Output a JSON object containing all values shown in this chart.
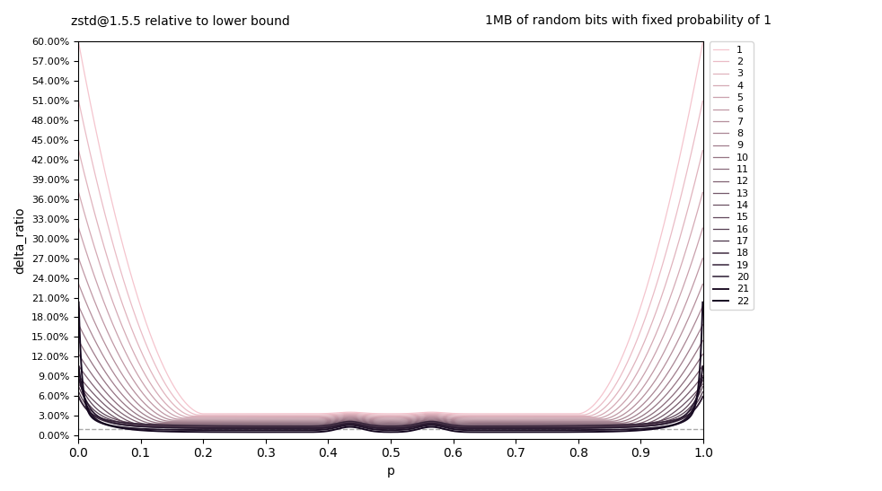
{
  "title_left": "zstd@1.5.5 relative to lower bound",
  "title_right": "1MB of random bits with fixed probability of 1",
  "xlabel": "p",
  "ylabel": "delta_ratio",
  "xlim": [
    0.0,
    1.0
  ],
  "ylim": [
    -0.005,
    0.6
  ],
  "yticks": [
    0.0,
    0.03,
    0.06,
    0.09,
    0.12,
    0.15,
    0.18,
    0.21,
    0.24,
    0.27,
    0.3,
    0.33,
    0.36,
    0.39,
    0.42,
    0.45,
    0.48,
    0.51,
    0.54,
    0.57,
    0.6
  ],
  "ytick_labels": [
    "0.00%",
    "3.00%",
    "6.00%",
    "9.00%",
    "12.00%",
    "15.00%",
    "18.00%",
    "21.00%",
    "24.00%",
    "27.00%",
    "30.00%",
    "33.00%",
    "36.00%",
    "39.00%",
    "42.00%",
    "45.00%",
    "48.00%",
    "51.00%",
    "54.00%",
    "57.00%",
    "60.00%"
  ],
  "hline_y": 0.01,
  "hline_color": "#aaaaaa",
  "hline_style": "--",
  "num_levels": 22,
  "color_start": "#f5c5ce",
  "color_end": "#150820",
  "figsize": [
    9.82,
    5.47
  ],
  "dpi": 100,
  "linewidth_default": 0.9,
  "linewidth_high": 1.4
}
